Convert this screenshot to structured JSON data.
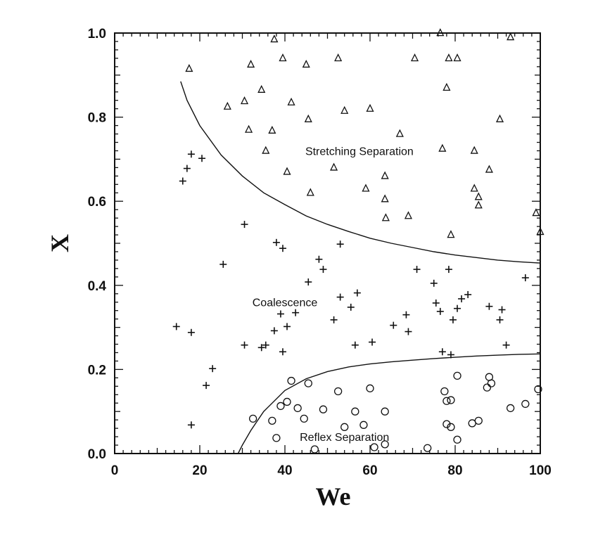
{
  "chart_data": {
    "type": "scatter",
    "title": "",
    "xlabel": "We",
    "ylabel": "X",
    "xlim": [
      0,
      100
    ],
    "ylim": [
      0,
      1
    ],
    "x_ticks": [
      0,
      20,
      40,
      60,
      80,
      100
    ],
    "y_ticks": [
      "0.0",
      "0.2",
      "0.4",
      "0.6",
      "0.8",
      "1.0"
    ],
    "grid": false,
    "legend": "none",
    "annotations": [
      {
        "text": "Stretching Separation",
        "x": 57.5,
        "y": 0.72
      },
      {
        "text": "Coalescence",
        "x": 40,
        "y": 0.36
      },
      {
        "text": "Reflex Separation",
        "x": 54,
        "y": 0.04
      }
    ],
    "boundaries": [
      {
        "name": "stretching boundary",
        "points": [
          [
            15.5,
            0.885
          ],
          [
            17,
            0.84
          ],
          [
            20,
            0.78
          ],
          [
            25,
            0.71
          ],
          [
            30,
            0.66
          ],
          [
            35,
            0.62
          ],
          [
            40,
            0.592
          ],
          [
            45,
            0.565
          ],
          [
            50,
            0.545
          ],
          [
            55,
            0.528
          ],
          [
            60,
            0.512
          ],
          [
            65,
            0.5
          ],
          [
            70,
            0.49
          ],
          [
            75,
            0.48
          ],
          [
            80,
            0.472
          ],
          [
            85,
            0.466
          ],
          [
            90,
            0.46
          ],
          [
            95,
            0.456
          ],
          [
            100,
            0.453
          ]
        ]
      },
      {
        "name": "reflex boundary",
        "points": [
          [
            0,
            0.0
          ],
          [
            29,
            0.0
          ],
          [
            30,
            0.02
          ],
          [
            32,
            0.055
          ],
          [
            35,
            0.1
          ],
          [
            40,
            0.15
          ],
          [
            45,
            0.178
          ],
          [
            50,
            0.195
          ],
          [
            55,
            0.206
          ],
          [
            60,
            0.213
          ],
          [
            65,
            0.218
          ],
          [
            70,
            0.222
          ],
          [
            75,
            0.226
          ],
          [
            80,
            0.229
          ],
          [
            85,
            0.232
          ],
          [
            90,
            0.234
          ],
          [
            95,
            0.236
          ],
          [
            100,
            0.237
          ]
        ]
      }
    ],
    "series": [
      {
        "marker": "triangle",
        "x": [
          17.5,
          26.5,
          30.5,
          31.5,
          32,
          34.5,
          35.5,
          37,
          37.5,
          39.5,
          40.5,
          41.5,
          45,
          45.5,
          46,
          51.5,
          52.5,
          54,
          59,
          60,
          63.5,
          63.5,
          63.7,
          67,
          69,
          70.5,
          76.5,
          77,
          78,
          78.5,
          79,
          80.5,
          84.5,
          84.5,
          85.5,
          85.5,
          88,
          90.5,
          93,
          99,
          100
        ],
        "y": [
          0.915,
          0.825,
          0.838,
          0.77,
          0.925,
          0.865,
          0.72,
          0.768,
          0.985,
          0.94,
          0.67,
          0.835,
          0.925,
          0.795,
          0.62,
          0.68,
          0.94,
          0.815,
          0.63,
          0.82,
          0.66,
          0.605,
          0.56,
          0.76,
          0.565,
          0.94,
          1.0,
          0.725,
          0.87,
          0.94,
          0.52,
          0.94,
          0.72,
          0.63,
          0.61,
          0.59,
          0.675,
          0.795,
          0.99,
          0.572,
          0.527
        ]
      },
      {
        "marker": "plus",
        "x": [
          14.5,
          16,
          17,
          18,
          18,
          18,
          20.5,
          21.5,
          23,
          25.5,
          30.5,
          30.5,
          34.5,
          35.5,
          37.5,
          38,
          39,
          39.5,
          39.5,
          40.5,
          42.5,
          45.5,
          48,
          49,
          51.5,
          53,
          53,
          55.5,
          56.5,
          57,
          60.5,
          65.5,
          68.5,
          69,
          71,
          75,
          75.5,
          76.5,
          77,
          78.5,
          79,
          79.5,
          80.5,
          81.5,
          83,
          88,
          90.5,
          91,
          92,
          96.5
        ],
        "y": [
          0.302,
          0.648,
          0.678,
          0.712,
          0.288,
          0.068,
          0.702,
          0.162,
          0.202,
          0.45,
          0.545,
          0.258,
          0.252,
          0.258,
          0.292,
          0.502,
          0.332,
          0.242,
          0.488,
          0.302,
          0.335,
          0.408,
          0.462,
          0.438,
          0.318,
          0.498,
          0.372,
          0.348,
          0.258,
          0.382,
          0.265,
          0.305,
          0.33,
          0.29,
          0.438,
          0.405,
          0.358,
          0.338,
          0.242,
          0.438,
          0.235,
          0.318,
          0.345,
          0.368,
          0.378,
          0.35,
          0.318,
          0.342,
          0.258,
          0.418
        ]
      },
      {
        "marker": "circle",
        "x": [
          32.5,
          37,
          38,
          39,
          40.5,
          41.5,
          43,
          44.5,
          45.5,
          47,
          49,
          52.5,
          54,
          56.5,
          58.5,
          60,
          61,
          63.5,
          63.5,
          73.5,
          77.5,
          78,
          78,
          79,
          79,
          80.5,
          80.5,
          84,
          85.5,
          87.5,
          88,
          88.5,
          93,
          96.5,
          99.5
        ],
        "y": [
          0.083,
          0.078,
          0.037,
          0.113,
          0.123,
          0.173,
          0.108,
          0.083,
          0.167,
          0.01,
          0.105,
          0.148,
          0.063,
          0.1,
          0.068,
          0.155,
          0.015,
          0.022,
          0.1,
          0.013,
          0.148,
          0.125,
          0.07,
          0.063,
          0.127,
          0.185,
          0.033,
          0.072,
          0.078,
          0.157,
          0.182,
          0.167,
          0.108,
          0.118,
          0.153
        ]
      }
    ]
  }
}
